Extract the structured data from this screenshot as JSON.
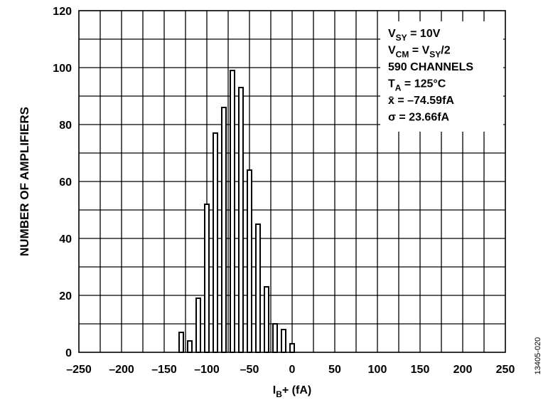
{
  "chart_data": {
    "type": "bar",
    "x": [
      -130,
      -120,
      -110,
      -100,
      -90,
      -80,
      -70,
      -60,
      -50,
      -40,
      -30,
      -20,
      -10,
      0
    ],
    "values": [
      7,
      4,
      19,
      52,
      77,
      86,
      99,
      93,
      64,
      45,
      23,
      10,
      8,
      3
    ],
    "color": "#ffffff",
    "xlim": [
      -250,
      250
    ],
    "xticks": [
      {
        "value": -250,
        "label": "–250"
      },
      {
        "value": -200,
        "label": "–200"
      },
      {
        "value": -150,
        "label": "–150"
      },
      {
        "value": -100,
        "label": "–100"
      },
      {
        "value": -50,
        "label": "–50"
      },
      0,
      50,
      100,
      150,
      200,
      250
    ],
    "ylim": [
      0,
      120
    ],
    "yticks": [
      0,
      20,
      40,
      60,
      80,
      100,
      120
    ],
    "xgrid_lines": [
      -225,
      -200,
      -175,
      -150,
      -125,
      -100,
      -75,
      -50,
      -25,
      0,
      25,
      50,
      75,
      100,
      125,
      150,
      175,
      200,
      225
    ],
    "ygrid_lines": [
      10,
      20,
      30,
      40,
      50,
      60,
      70,
      80,
      90,
      100,
      110
    ],
    "grid": true,
    "ylabel": "NUMBER OF AMPLIFIERS",
    "xlabel": [
      "I",
      "B",
      "+ (fA)"
    ],
    "annotation": [
      [
        "V",
        "SY",
        " = 10V"
      ],
      [
        "V",
        "CM",
        " = V",
        "SY",
        "/2"
      ],
      [
        "590 CHANNELS"
      ],
      [
        "T",
        "A",
        " = 125°C"
      ],
      [
        "x̄ = –74.59fA"
      ],
      [
        "σ = 23.66fA"
      ]
    ],
    "figure_id": "13405-020"
  }
}
